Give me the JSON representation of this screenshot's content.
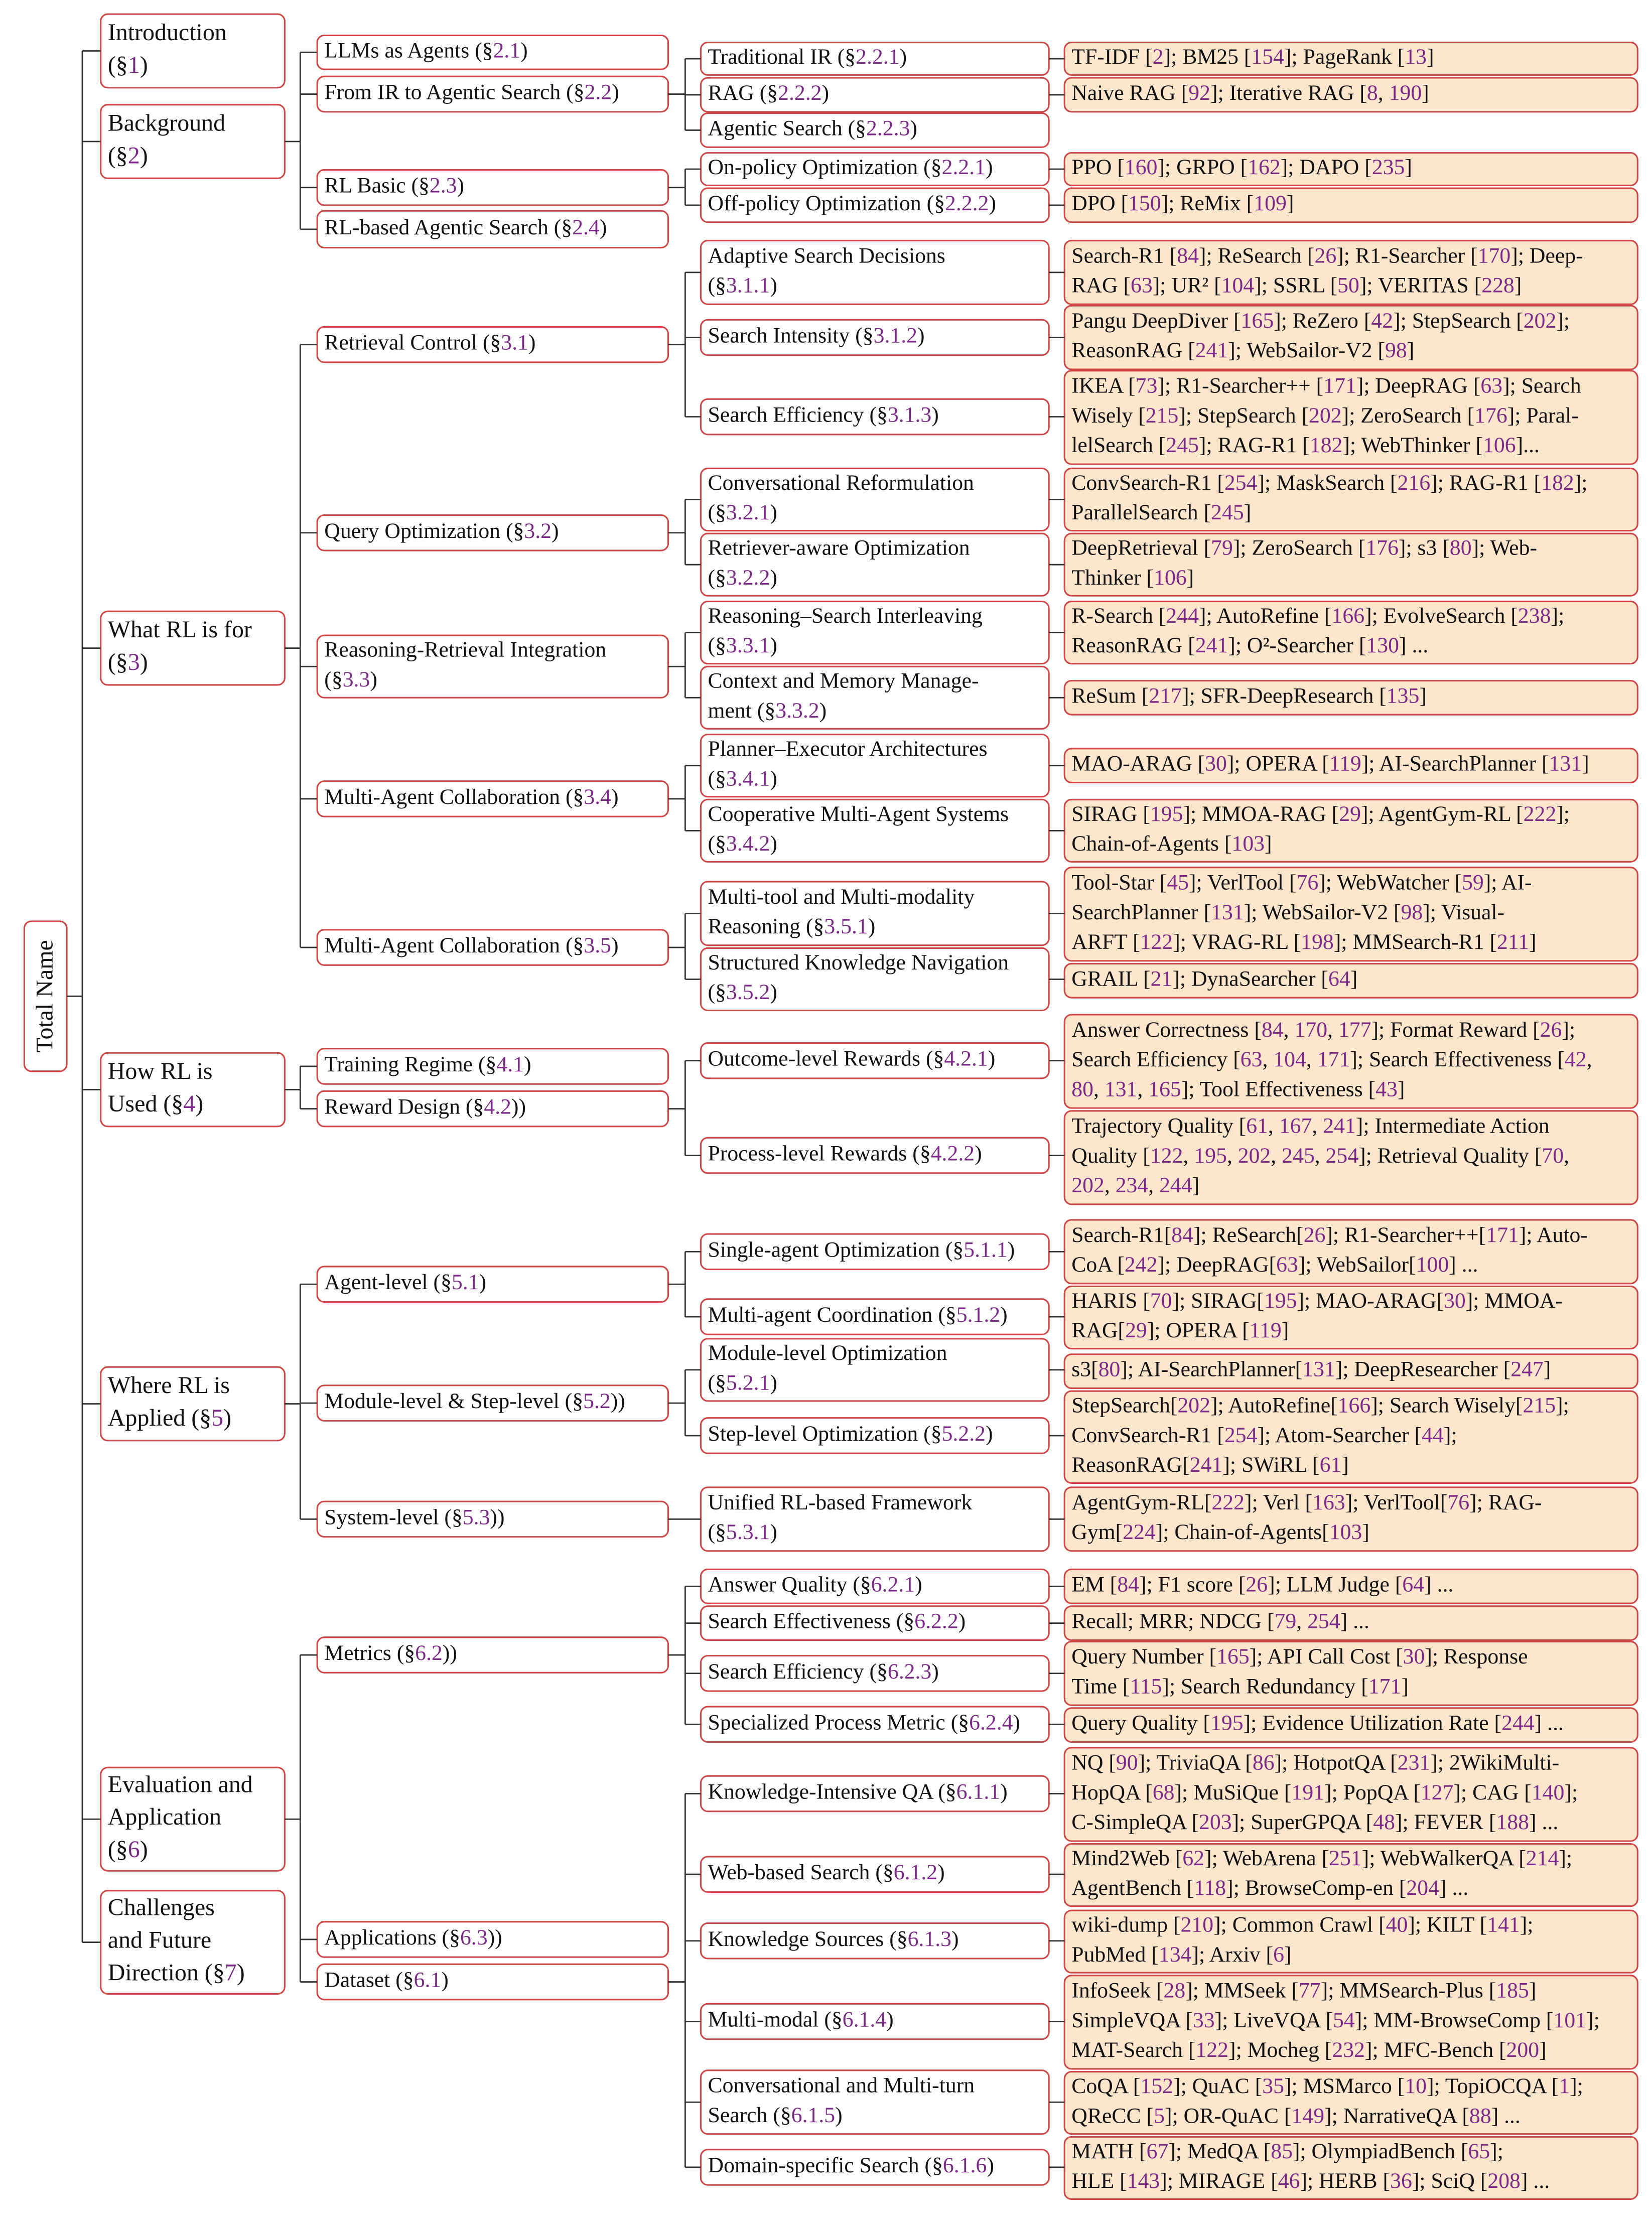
{
  "root": {
    "label": "Total Name",
    "children": [
      {
        "label": [
          "Introduction",
          "(§1)"
        ],
        "children": []
      },
      {
        "label": [
          "Background",
          "(§2)"
        ],
        "children": [
          {
            "label": [
              "LLMs as Agents (§2.1)"
            ],
            "children": []
          },
          {
            "label": [
              "From IR to Agentic Search (§2.2)"
            ],
            "children": [
              {
                "label": [
                  "Traditional IR (§2.2.1)"
                ],
                "leaf": [
                  "TF-IDF [2]; BM25 [154]; PageRank [13]"
                ]
              },
              {
                "label": [
                  "RAG (§2.2.2)"
                ],
                "leaf": [
                  "Naive RAG [92]; Iterative RAG [8, 190]"
                ]
              },
              {
                "label": [
                  "Agentic Search (§2.2.3)"
                ]
              }
            ]
          },
          {
            "label": [
              "RL Basic (§2.3)"
            ],
            "children": [
              {
                "label": [
                  "On-policy Optimization (§2.2.1)"
                ],
                "leaf": [
                  "PPO [160]; GRPO [162]; DAPO [235]"
                ]
              },
              {
                "label": [
                  "Off-policy Optimization (§2.2.2)"
                ],
                "leaf": [
                  "DPO [150]; ReMix [109]"
                ]
              }
            ]
          },
          {
            "label": [
              "RL-based Agentic Search (§2.4)"
            ],
            "children": []
          }
        ]
      },
      {
        "label": [
          "What RL is for",
          "(§3)"
        ],
        "children": [
          {
            "label": [
              "Retrieval Control (§3.1)"
            ],
            "children": [
              {
                "label": [
                  "Adaptive Search Decisions",
                  "(§3.1.1)"
                ],
                "leaf": [
                  "Search-R1 [84]; ReSearch [26]; R1-Searcher [170]; Deep-",
                  "RAG [63]; UR² [104]; SSRL [50]; VERITAS [228]"
                ]
              },
              {
                "label": [
                  "Search Intensity (§3.1.2)"
                ],
                "leaf": [
                  "Pangu DeepDiver [165]; ReZero [42]; StepSearch [202];",
                  "ReasonRAG [241]; WebSailor-V2 [98]"
                ]
              },
              {
                "label": [
                  "Search Efficiency (§3.1.3)"
                ],
                "leaf": [
                  "IKEA [73]; R1-Searcher++ [171]; DeepRAG [63]; Search",
                  "Wisely [215]; StepSearch [202]; ZeroSearch [176]; Paral-",
                  "lelSearch [245]; RAG-R1 [182]; WebThinker [106]..."
                ]
              }
            ]
          },
          {
            "label": [
              "Query Optimization (§3.2)"
            ],
            "children": [
              {
                "label": [
                  "Conversational Reformulation",
                  "(§3.2.1)"
                ],
                "leaf": [
                  "ConvSearch-R1 [254]; MaskSearch [216]; RAG-R1 [182];",
                  "ParallelSearch [245]"
                ]
              },
              {
                "label": [
                  "Retriever-aware Optimization",
                  "(§3.2.2)"
                ],
                "leaf": [
                  "DeepRetrieval [79]; ZeroSearch [176]; s3 [80]; Web-",
                  "Thinker [106]"
                ]
              }
            ]
          },
          {
            "label": [
              "Reasoning-Retrieval Integration",
              "(§3.3)"
            ],
            "children": [
              {
                "label": [
                  "Reasoning–Search Interleaving",
                  "(§3.3.1)"
                ],
                "leaf": [
                  "R-Search [244]; AutoRefine [166]; EvolveSearch [238];",
                  "ReasonRAG [241]; O²-Searcher [130] ..."
                ]
              },
              {
                "label": [
                  "Context and Memory Manage-",
                  "ment (§3.3.2)"
                ],
                "leaf": [
                  "ReSum [217]; SFR-DeepResearch [135]"
                ]
              }
            ]
          },
          {
            "label": [
              "Multi-Agent Collaboration (§3.4)"
            ],
            "children": [
              {
                "label": [
                  "Planner–Executor Architectures",
                  "(§3.4.1)"
                ],
                "leaf": [
                  "MAO-ARAG [30]; OPERA [119]; AI-SearchPlanner [131]"
                ]
              },
              {
                "label": [
                  "Cooperative Multi-Agent Systems",
                  "(§3.4.2)"
                ],
                "leaf": [
                  "SIRAG [195]; MMOA-RAG [29]; AgentGym-RL [222];",
                  "Chain-of-Agents [103]"
                ]
              }
            ]
          },
          {
            "label": [
              "Multi-Agent Collaboration (§3.5)"
            ],
            "children": [
              {
                "label": [
                  "Multi-tool and Multi-modality",
                  "Reasoning (§3.5.1)"
                ],
                "leaf": [
                  "Tool-Star [45]; VerlTool [76]; WebWatcher [59]; AI-",
                  "SearchPlanner [131]; WebSailor-V2 [98]; Visual-",
                  "ARFT [122]; VRAG-RL [198]; MMSearch-R1 [211]"
                ]
              },
              {
                "label": [
                  "Structured Knowledge Navigation",
                  "(§3.5.2)"
                ],
                "leaf": [
                  "GRAIL [21]; DynaSearcher [64]"
                ]
              }
            ]
          }
        ]
      },
      {
        "label": [
          "How RL is",
          "Used (§4)"
        ],
        "children": [
          {
            "label": [
              "Training Regime (§4.1)"
            ],
            "children": []
          },
          {
            "label": [
              "Reward Design (§4.2))"
            ],
            "children": [
              {
                "label": [
                  "Outcome-level Rewards (§4.2.1)"
                ],
                "leaf": [
                  "Answer Correctness [84, 170, 177]; Format Reward [26];",
                  "Search Efficiency [63, 104, 171]; Search Effectiveness [42,",
                  "80, 131, 165]; Tool Effectiveness [43]"
                ]
              },
              {
                "label": [
                  "Process-level Rewards (§4.2.2)"
                ],
                "leaf": [
                  "Trajectory Quality [61, 167, 241]; Intermediate Action",
                  "Quality [122, 195, 202, 245, 254]; Retrieval Quality [70,",
                  "202, 234, 244]"
                ]
              }
            ]
          }
        ]
      },
      {
        "label": [
          "Where RL is",
          "Applied (§5)"
        ],
        "children": [
          {
            "label": [
              "Agent-level (§5.1)"
            ],
            "children": [
              {
                "label": [
                  "Single-agent Optimization (§5.1.1)"
                ],
                "leaf": [
                  "Search-R1[84]; ReSearch[26]; R1-Searcher++[171]; Auto-",
                  "CoA [242]; DeepRAG[63]; WebSailor[100] ..."
                ]
              },
              {
                "label": [
                  "Multi-agent Coordination (§5.1.2)"
                ],
                "leaf": [
                  "HARIS [70]; SIRAG[195]; MAO-ARAG[30]; MMOA-",
                  "RAG[29]; OPERA [119]"
                ]
              }
            ]
          },
          {
            "label": [
              "Module-level & Step-level (§5.2))"
            ],
            "children": [
              {
                "label": [
                  "Module-level Optimization",
                  "(§5.2.1)"
                ],
                "leaf": [
                  "s3[80]; AI-SearchPlanner[131]; DeepResearcher [247]"
                ]
              },
              {
                "label": [
                  "Step-level Optimization (§5.2.2)"
                ],
                "leaf": [
                  "StepSearch[202]; AutoRefine[166]; Search Wisely[215];",
                  "ConvSearch-R1 [254]; Atom-Searcher [44];",
                  "ReasonRAG[241]; SWiRL [61]"
                ]
              }
            ]
          },
          {
            "label": [
              "System-level (§5.3))"
            ],
            "children": [
              {
                "label": [
                  "Unified RL-based Framework",
                  "(§5.3.1)"
                ],
                "leaf": [
                  "AgentGym-RL[222]; Verl [163]; VerlTool[76]; RAG-",
                  "Gym[224]; Chain-of-Agents[103]"
                ]
              }
            ]
          }
        ]
      },
      {
        "label": [
          "Evaluation and",
          "Application",
          "(§6)"
        ],
        "children": [
          {
            "label": [
              "Metrics (§6.2))"
            ],
            "children": [
              {
                "label": [
                  "Answer Quality (§6.2.1)"
                ],
                "leaf": [
                  "EM [84]; F1 score [26]; LLM Judge [64] ..."
                ]
              },
              {
                "label": [
                  "Search Effectiveness (§6.2.2)"
                ],
                "leaf": [
                  "Recall; MRR; NDCG [79, 254] ..."
                ]
              },
              {
                "label": [
                  "Search Efficiency (§6.2.3)"
                ],
                "leaf": [
                  "Query Number [165]; API Call Cost [30]; Response",
                  "Time [115]; Search Redundancy [171]"
                ]
              },
              {
                "label": [
                  "Specialized Process Metric (§6.2.4)"
                ],
                "leaf": [
                  "Query Quality [195]; Evidence Utilization Rate [244] ..."
                ]
              }
            ]
          },
          {
            "label": [
              "Applications (§6.3))"
            ],
            "children": []
          },
          {
            "label": [
              "Dataset (§6.1)"
            ],
            "children": [
              {
                "label": [
                  "Knowledge-Intensive QA (§6.1.1)"
                ],
                "leaf": [
                  "NQ [90]; TriviaQA [86]; HotpotQA [231]; 2WikiMulti-",
                  "HopQA [68]; MuSiQue [191]; PopQA [127]; CAG [140];",
                  "C-SimpleQA [203]; SuperGPQA [48]; FEVER [188] ..."
                ]
              },
              {
                "label": [
                  "Web-based Search (§6.1.2)"
                ],
                "leaf": [
                  "Mind2Web [62]; WebArena [251]; WebWalkerQA [214];",
                  "AgentBench [118]; BrowseComp-en [204] ..."
                ]
              },
              {
                "label": [
                  "Knowledge Sources (§6.1.3)"
                ],
                "leaf": [
                  "wiki-dump [210]; Common Crawl [40]; KILT [141];",
                  "PubMed [134]; Arxiv [6]"
                ]
              },
              {
                "label": [
                  "Multi-modal (§6.1.4)"
                ],
                "leaf": [
                  "InfoSeek [28]; MMSeek [77]; MMSearch-Plus [185]",
                  "SimpleVQA [33]; LiveVQA [54]; MM-BrowseComp [101];",
                  "MAT-Search [122]; Mocheg [232]; MFC-Bench [200]"
                ]
              },
              {
                "label": [
                  "Conversational and Multi-turn",
                  "Search (§6.1.5)"
                ],
                "leaf": [
                  "CoQA [152]; QuAC [35]; MSMarco [10]; TopiOCQA [1];",
                  "QReCC [5]; OR-QuAC [149]; NarrativeQA [88] ..."
                ]
              },
              {
                "label": [
                  "Domain-specific Search (§6.1.6)"
                ],
                "leaf": [
                  "MATH [67]; MedQA [85]; OlympiadBench [65];",
                  "HLE [143]; MIRAGE [46]; HERB [36]; SciQ [208] ..."
                ]
              }
            ]
          }
        ]
      },
      {
        "label": [
          "Challenges",
          "and Future",
          "Direction (§7)"
        ],
        "children": []
      }
    ]
  }
}
